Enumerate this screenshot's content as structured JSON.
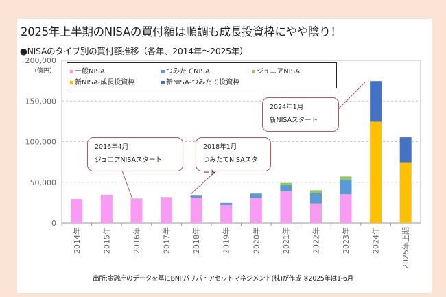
{
  "title": "2025年上半期のNISAの買付額は順調も成長投資枠にやや陰り！",
  "subtitle": "●NISAのタイプ別の買付額推移（各年、2014年～2025年）",
  "footnote": "出所:金融庁のデータを基にBNPパリバ・アセットマネジメント(株)が作成 ※2025年は1-6月",
  "callouts": [
    {
      "line1": "2016年4月",
      "line2": "ジュニアNISAスタート"
    },
    {
      "line1": "2018年1月",
      "line2": "つみたてNISAスタート"
    },
    {
      "line1": "2024年1月",
      "line2": "新NISAスタート"
    }
  ],
  "chart_data": {
    "type": "bar",
    "stacked": true,
    "ylabel": "（億円）",
    "ylim": [
      0,
      200000
    ],
    "yticks": [
      "0",
      "50,000",
      "100,000",
      "150,000",
      "200,000"
    ],
    "ytick_values": [
      0,
      50000,
      100000,
      150000,
      200000
    ],
    "grid": true,
    "legend_position": "top-left",
    "categories": [
      "2014年",
      "2015年",
      "2016年",
      "2017年",
      "2018年",
      "2019年",
      "2020年",
      "2021年",
      "2022年",
      "2023年",
      "2024年",
      "2025年上期"
    ],
    "series": [
      {
        "name": "一般NISA",
        "color": "#f79cf2",
        "values": [
          29500,
          34500,
          29800,
          31300,
          31200,
          22000,
          31000,
          38800,
          23900,
          35200,
          0,
          0
        ]
      },
      {
        "name": "つみたてNISA",
        "color": "#5b9bd5",
        "values": [
          0,
          0,
          0,
          0,
          2300,
          2500,
          5000,
          7600,
          12600,
          17700,
          0,
          0
        ]
      },
      {
        "name": "ジュニアNISA",
        "color": "#8fc965",
        "values": [
          0,
          0,
          300,
          500,
          300,
          200,
          300,
          2800,
          3700,
          4200,
          0,
          0
        ]
      },
      {
        "name": "新NISA-成長投資枠",
        "color": "#ffc000",
        "values": [
          0,
          0,
          0,
          0,
          0,
          0,
          0,
          0,
          0,
          0,
          124500,
          74500
        ]
      },
      {
        "name": "新NISA-つみたて投資枠",
        "color": "#4472c4",
        "values": [
          0,
          0,
          0,
          0,
          0,
          0,
          0,
          0,
          0,
          0,
          50000,
          30900
        ]
      }
    ]
  }
}
